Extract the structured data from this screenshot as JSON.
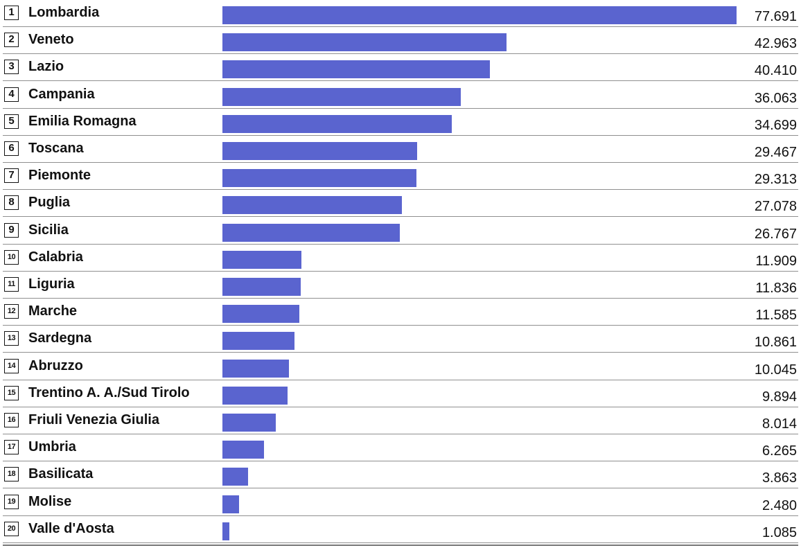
{
  "chart_data": {
    "type": "bar",
    "orientation": "horizontal",
    "grid": false,
    "bar_color": "#5a64cf",
    "xlim": [
      0,
      77691
    ],
    "categories": [
      "Lombardia",
      "Veneto",
      "Lazio",
      "Campania",
      "Emilia Romagna",
      "Toscana",
      "Piemonte",
      "Puglia",
      "Sicilia",
      "Calabria",
      "Liguria",
      "Marche",
      "Sardegna",
      "Abruzzo",
      "Trentino A. A./Sud Tirolo",
      "Friuli Venezia Giulia",
      "Umbria",
      "Basilicata",
      "Molise",
      "Valle d'Aosta"
    ],
    "ranks": [
      "1",
      "2",
      "3",
      "4",
      "5",
      "6",
      "7",
      "8",
      "9",
      "10",
      "11",
      "12",
      "13",
      "14",
      "15",
      "16",
      "17",
      "18",
      "19",
      "20"
    ],
    "values": [
      77691,
      42963,
      40410,
      36063,
      34699,
      29467,
      29313,
      27078,
      26767,
      11909,
      11836,
      11585,
      10861,
      10045,
      9894,
      8014,
      6265,
      3863,
      2480,
      1085
    ],
    "value_labels": [
      "77.691",
      "42.963",
      "40.410",
      "36.063",
      "34.699",
      "29.467",
      "29.313",
      "27.078",
      "26.767",
      "11.909",
      "11.836",
      "11.585",
      "10.861",
      "10.045",
      "9.894",
      "8.014",
      "6.265",
      "3.863",
      "2.480",
      "1.085"
    ]
  }
}
